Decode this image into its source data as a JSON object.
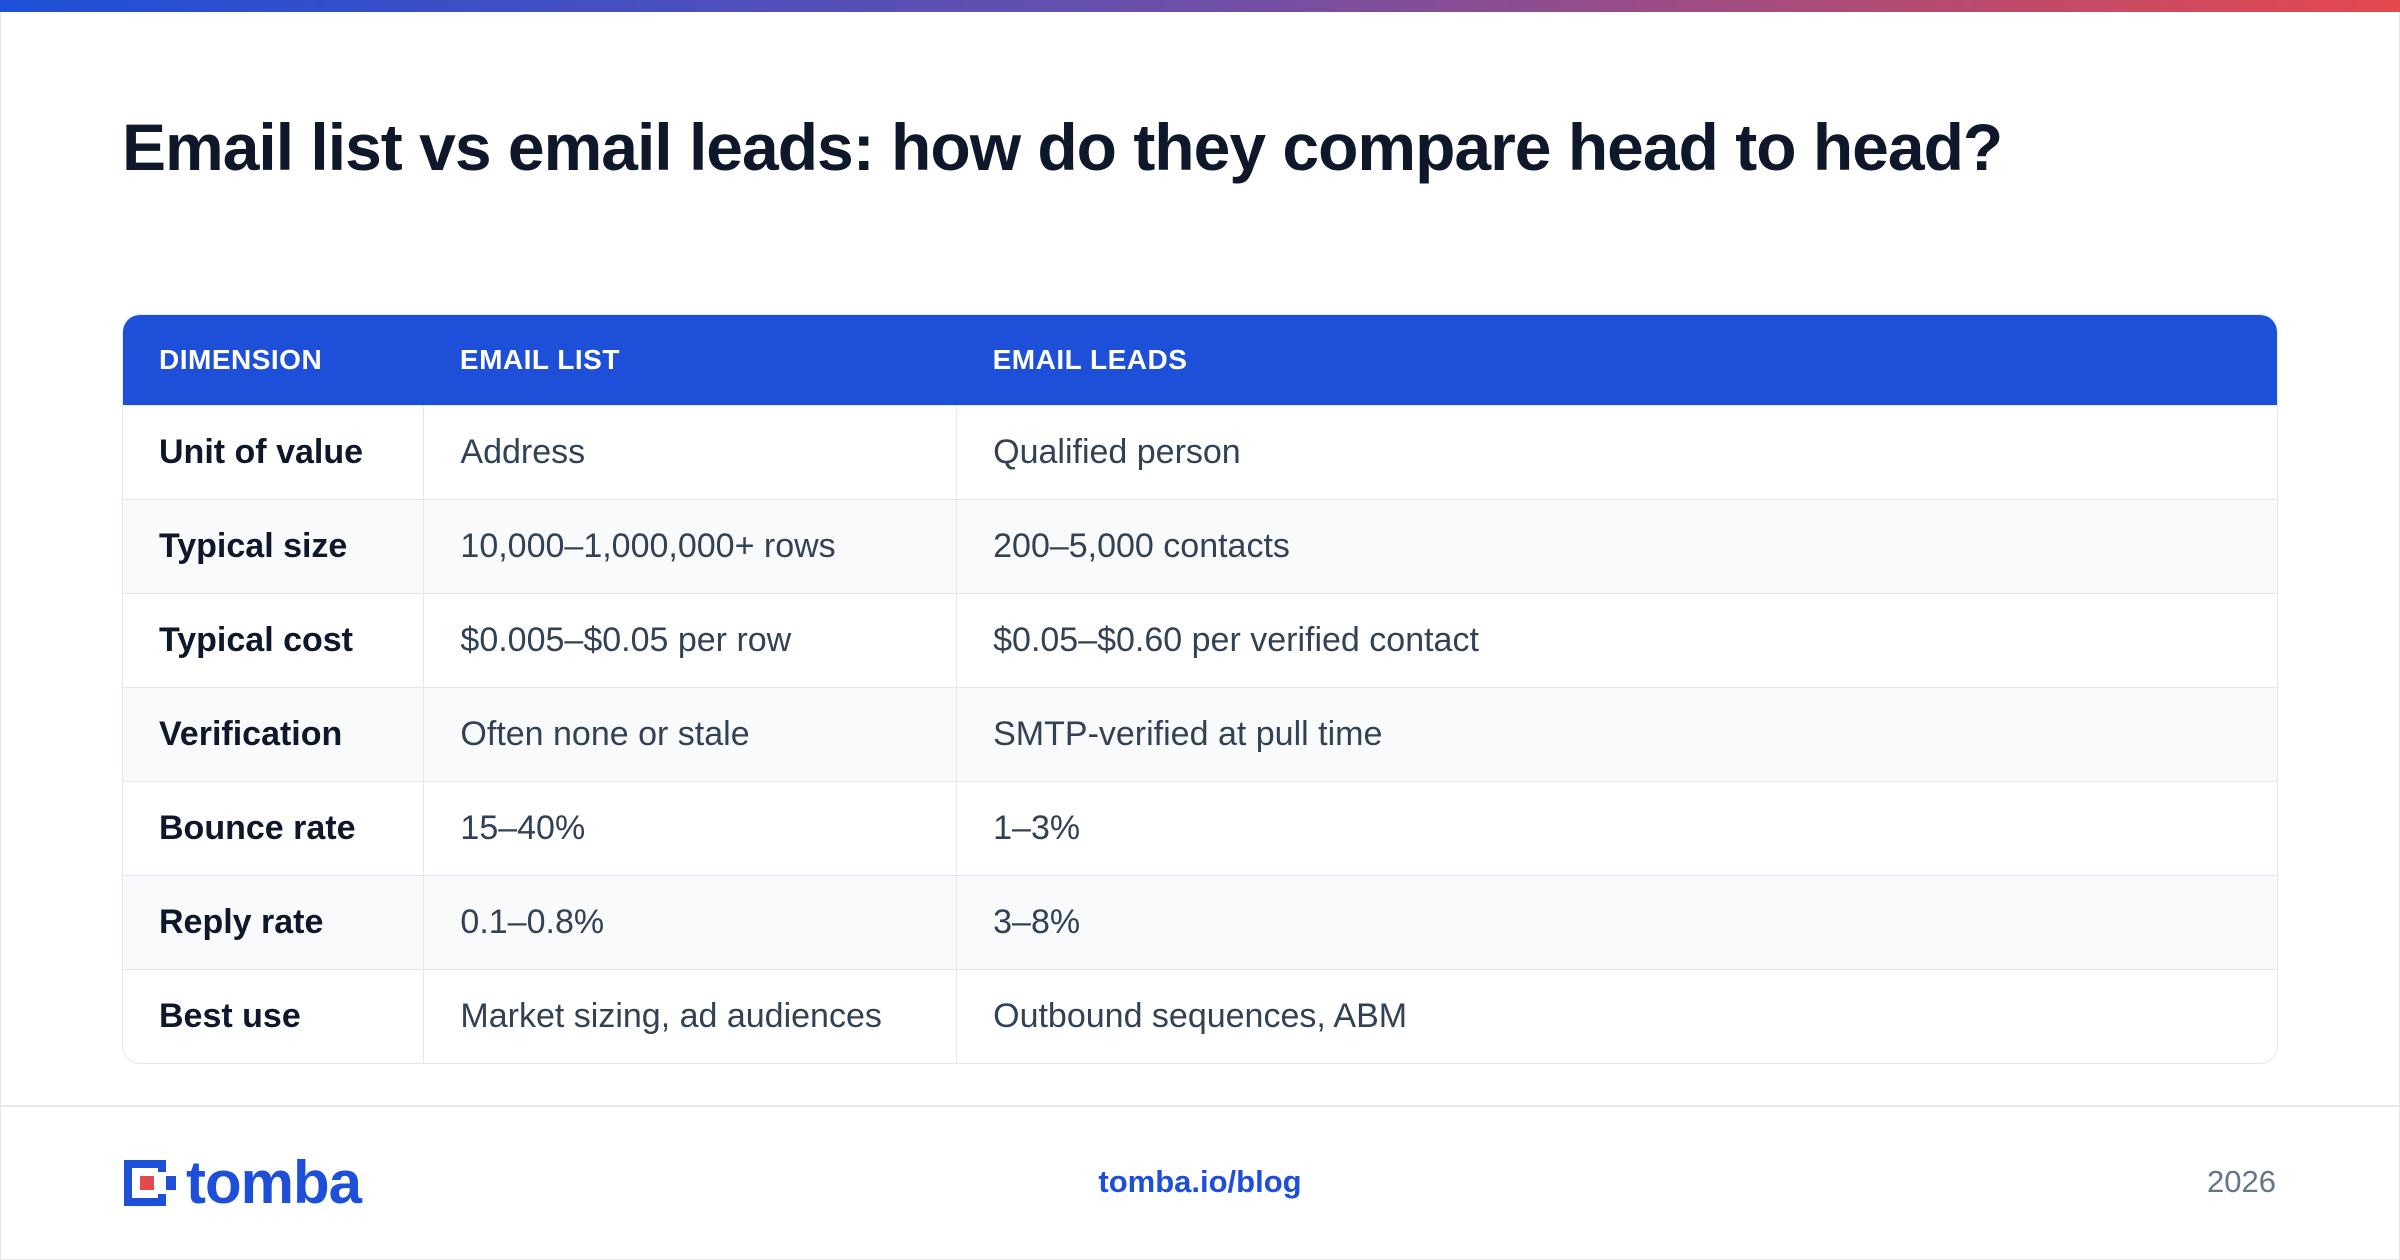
{
  "header": {
    "title": "Email list vs email leads: how do they compare head to head?"
  },
  "table": {
    "columns": [
      "DIMENSION",
      "EMAIL LIST",
      "EMAIL LEADS"
    ],
    "rows": [
      [
        "Unit of value",
        "Address",
        "Qualified person"
      ],
      [
        "Typical size",
        "10,000–1,000,000+ rows",
        "200–5,000 contacts"
      ],
      [
        "Typical cost",
        "$0.005–$0.05 per row",
        "$0.05–$0.60 per verified contact"
      ],
      [
        "Verification",
        "Often none or stale",
        "SMTP-verified at pull time"
      ],
      [
        "Bounce rate",
        "15–40%",
        "1–3%"
      ],
      [
        "Reply rate",
        "0.1–0.8%",
        "3–8%"
      ],
      [
        "Best use",
        "Market sizing, ad audiences",
        "Outbound sequences, ABM"
      ]
    ]
  },
  "footer": {
    "brand": "tomba",
    "link": "tomba.io/blog",
    "year": "2026"
  }
}
